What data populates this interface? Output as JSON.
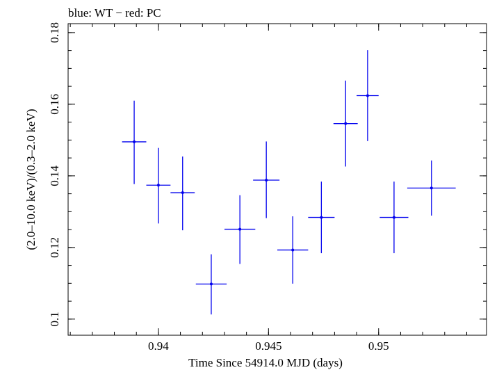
{
  "chart_data": {
    "type": "scatter",
    "title": "blue: WT − red: PC",
    "xlabel": "Time Since 54914.0 MJD (days)",
    "ylabel": "(2.0–10.0 keV)/(0.3–2.0 keV)",
    "xlim": [
      0.9359,
      0.9549
    ],
    "ylim": [
      0.0955,
      0.1825
    ],
    "x_ticks": [
      {
        "value": 0.94,
        "label": "0.94"
      },
      {
        "value": 0.945,
        "label": "0.945"
      },
      {
        "value": 0.95,
        "label": "0.95"
      }
    ],
    "y_ticks": [
      {
        "value": 0.1,
        "label": "0.1"
      },
      {
        "value": 0.12,
        "label": "0.12"
      },
      {
        "value": 0.14,
        "label": "0.14"
      },
      {
        "value": 0.16,
        "label": "0.16"
      },
      {
        "value": 0.18,
        "label": "0.18"
      }
    ],
    "x_minor_step": 0.001,
    "y_minor_step": 0.005,
    "series": [
      {
        "color": "#0000ee",
        "points": [
          {
            "x": 0.9389,
            "xerr": 0.00055,
            "y": 0.1495,
            "yerr_lo": 0.0118,
            "yerr_hi": 0.0115
          },
          {
            "x": 0.94,
            "xerr": 0.00055,
            "y": 0.1374,
            "yerr_lo": 0.0107,
            "yerr_hi": 0.0104
          },
          {
            "x": 0.9411,
            "xerr": 0.00055,
            "y": 0.1353,
            "yerr_lo": 0.0105,
            "yerr_hi": 0.0101
          },
          {
            "x": 0.9424,
            "xerr": 0.0007,
            "y": 0.1098,
            "yerr_lo": 0.0085,
            "yerr_hi": 0.0083
          },
          {
            "x": 0.9437,
            "xerr": 0.0007,
            "y": 0.1251,
            "yerr_lo": 0.0097,
            "yerr_hi": 0.0095
          },
          {
            "x": 0.9449,
            "xerr": 0.0006,
            "y": 0.1388,
            "yerr_lo": 0.0106,
            "yerr_hi": 0.0108
          },
          {
            "x": 0.9461,
            "xerr": 0.0007,
            "y": 0.1193,
            "yerr_lo": 0.0094,
            "yerr_hi": 0.0094
          },
          {
            "x": 0.9474,
            "xerr": 0.0006,
            "y": 0.1284,
            "yerr_lo": 0.01,
            "yerr_hi": 0.01
          },
          {
            "x": 0.9485,
            "xerr": 0.00055,
            "y": 0.1546,
            "yerr_lo": 0.012,
            "yerr_hi": 0.012
          },
          {
            "x": 0.9495,
            "xerr": 0.0005,
            "y": 0.1624,
            "yerr_lo": 0.0127,
            "yerr_hi": 0.0127
          },
          {
            "x": 0.9507,
            "xerr": 0.00065,
            "y": 0.1284,
            "yerr_lo": 0.01,
            "yerr_hi": 0.01
          },
          {
            "x": 0.9524,
            "xerr": 0.0011,
            "y": 0.1366,
            "yerr_lo": 0.0077,
            "yerr_hi": 0.0077
          }
        ]
      }
    ],
    "grid": false,
    "legend": "none"
  }
}
